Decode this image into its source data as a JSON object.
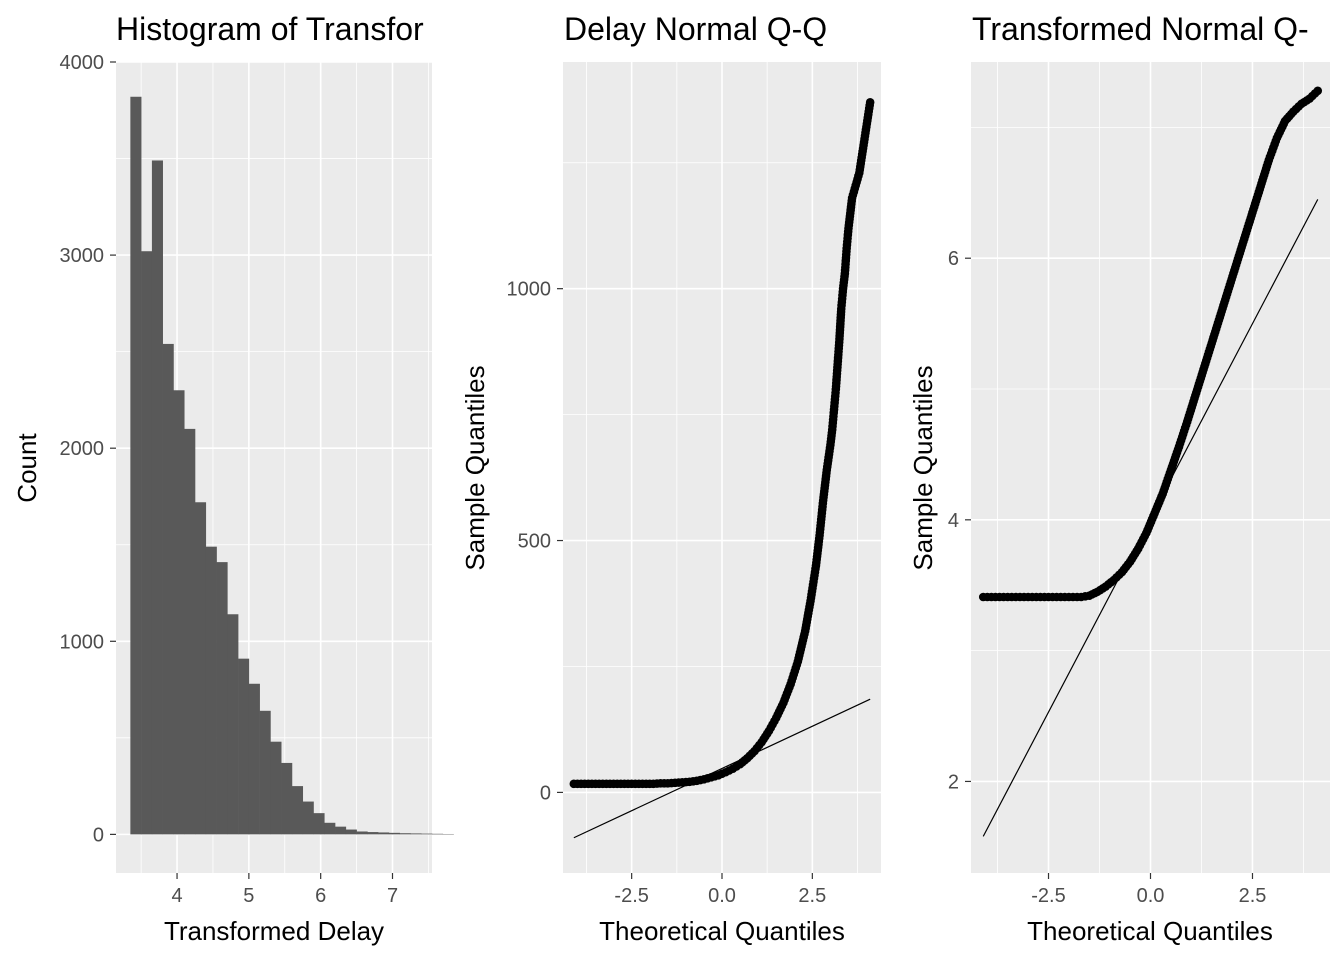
{
  "chart_data": [
    {
      "type": "bar",
      "title": "Histogram of Transfor",
      "xlabel": "Transformed Delay",
      "ylabel": "Count",
      "xlim": [
        3.15,
        7.55
      ],
      "ylim": [
        -200,
        4000
      ],
      "xticks": [
        4,
        5,
        6,
        7
      ],
      "yticks": [
        0,
        1000,
        2000,
        3000,
        4000
      ],
      "bin_start": 3.35,
      "bin_width": 0.15,
      "values": [
        3820,
        3020,
        3490,
        2540,
        2300,
        2100,
        1720,
        1490,
        1410,
        1140,
        910,
        780,
        640,
        480,
        370,
        250,
        170,
        110,
        60,
        40,
        25,
        15,
        12,
        10,
        8,
        6,
        5,
        4,
        3,
        2
      ],
      "grid": true
    },
    {
      "type": "scatter",
      "title": "Delay Normal Q-Q",
      "xlabel": "Theoretical Quantiles",
      "ylabel": "Sample Quantiles",
      "xlim": [
        -4.4,
        4.4
      ],
      "ylim": [
        -160,
        1450
      ],
      "xticks": [
        -2.5,
        0.0,
        2.5
      ],
      "yticks": [
        0,
        500,
        1000
      ],
      "ref_line": {
        "x": [
          -4.1,
          4.1
        ],
        "y": [
          -90,
          185
        ]
      },
      "points": {
        "theoretical": [
          -4.1,
          -3.9,
          -3.7,
          -3.5,
          -3.3,
          -3.1,
          -2.9,
          -2.7,
          -2.5,
          -2.3,
          -2.1,
          -1.9,
          -1.7,
          -1.5,
          -1.3,
          -1.1,
          -0.9,
          -0.7,
          -0.5,
          -0.3,
          -0.1,
          0.1,
          0.3,
          0.5,
          0.7,
          0.9,
          1.1,
          1.3,
          1.5,
          1.7,
          1.9,
          2.1,
          2.3,
          2.45,
          2.6,
          2.7,
          2.8,
          2.9,
          3.0,
          3.05,
          3.1,
          3.15,
          3.2,
          3.25,
          3.3,
          3.35,
          3.4,
          3.45,
          3.5,
          3.6,
          3.8,
          4.1
        ],
        "sample": [
          17,
          17,
          17,
          17,
          17,
          17,
          17,
          17,
          17,
          17,
          17,
          17,
          18,
          18,
          19,
          20,
          21,
          23,
          26,
          30,
          34,
          40,
          47,
          56,
          68,
          82,
          100,
          122,
          148,
          178,
          215,
          260,
          320,
          380,
          450,
          510,
          580,
          640,
          690,
          720,
          760,
          800,
          850,
          900,
          960,
          1000,
          1030,
          1080,
          1120,
          1180,
          1230,
          1370
        ]
      },
      "grid": true
    },
    {
      "type": "scatter",
      "title": "Transformed  Normal Q-",
      "xlabel": "Theoretical Quantiles",
      "ylabel": "Sample Quantiles",
      "xlim": [
        -4.4,
        4.4
      ],
      "ylim": [
        1.3,
        7.5
      ],
      "xticks": [
        -2.5,
        0.0,
        2.5
      ],
      "yticks": [
        2,
        4,
        6
      ],
      "ref_line": {
        "x": [
          -4.1,
          4.1
        ],
        "y": [
          1.58,
          6.45
        ]
      },
      "points": {
        "theoretical": [
          -4.1,
          -3.9,
          -3.7,
          -3.5,
          -3.3,
          -3.1,
          -2.9,
          -2.7,
          -2.5,
          -2.3,
          -2.1,
          -1.9,
          -1.7,
          -1.5,
          -1.3,
          -1.1,
          -0.9,
          -0.7,
          -0.5,
          -0.3,
          -0.1,
          0.1,
          0.3,
          0.5,
          0.7,
          0.9,
          1.1,
          1.3,
          1.5,
          1.7,
          1.9,
          2.1,
          2.3,
          2.5,
          2.7,
          2.9,
          3.1,
          3.3,
          3.5,
          3.7,
          3.9,
          4.1
        ],
        "sample": [
          3.41,
          3.41,
          3.41,
          3.41,
          3.41,
          3.41,
          3.41,
          3.41,
          3.41,
          3.41,
          3.41,
          3.41,
          3.41,
          3.42,
          3.45,
          3.49,
          3.54,
          3.6,
          3.68,
          3.78,
          3.9,
          4.05,
          4.2,
          4.38,
          4.56,
          4.75,
          4.95,
          5.15,
          5.35,
          5.55,
          5.75,
          5.95,
          6.15,
          6.35,
          6.55,
          6.75,
          6.92,
          7.05,
          7.12,
          7.18,
          7.22,
          7.28
        ]
      },
      "grid": true
    }
  ]
}
